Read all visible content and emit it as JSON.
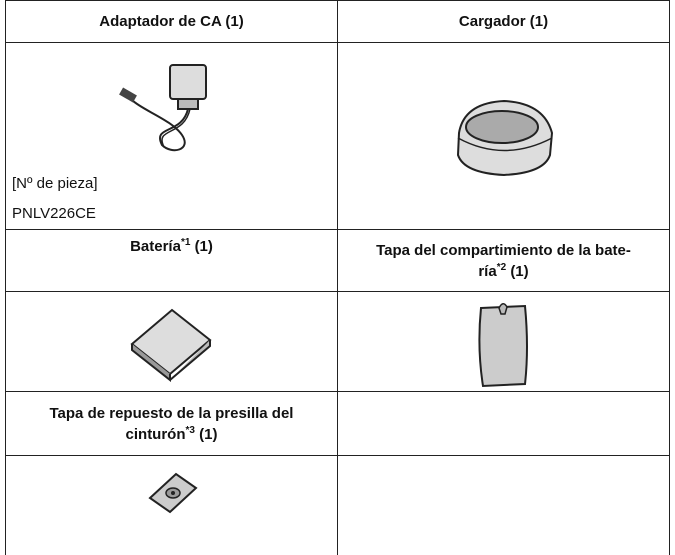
{
  "table": {
    "headers": [
      {
        "name": "Adaptador de CA",
        "qty": "(1)"
      },
      {
        "name": "Cargador",
        "qty": "(1)"
      },
      {
        "name": "Batería",
        "note": "*1",
        "qty": "(1)"
      },
      {
        "name": "Tapa del compartimiento de la bate-",
        "name_end": "ría",
        "note": "*2",
        "qty": "(1)"
      },
      {
        "name": "Tapa de repuesto de la presilla del",
        "name_end": "cinturón",
        "note": "*3",
        "qty": "(1)"
      }
    ],
    "part_label": "[Nº de pieza]",
    "part_number": "PNLV226CE"
  }
}
